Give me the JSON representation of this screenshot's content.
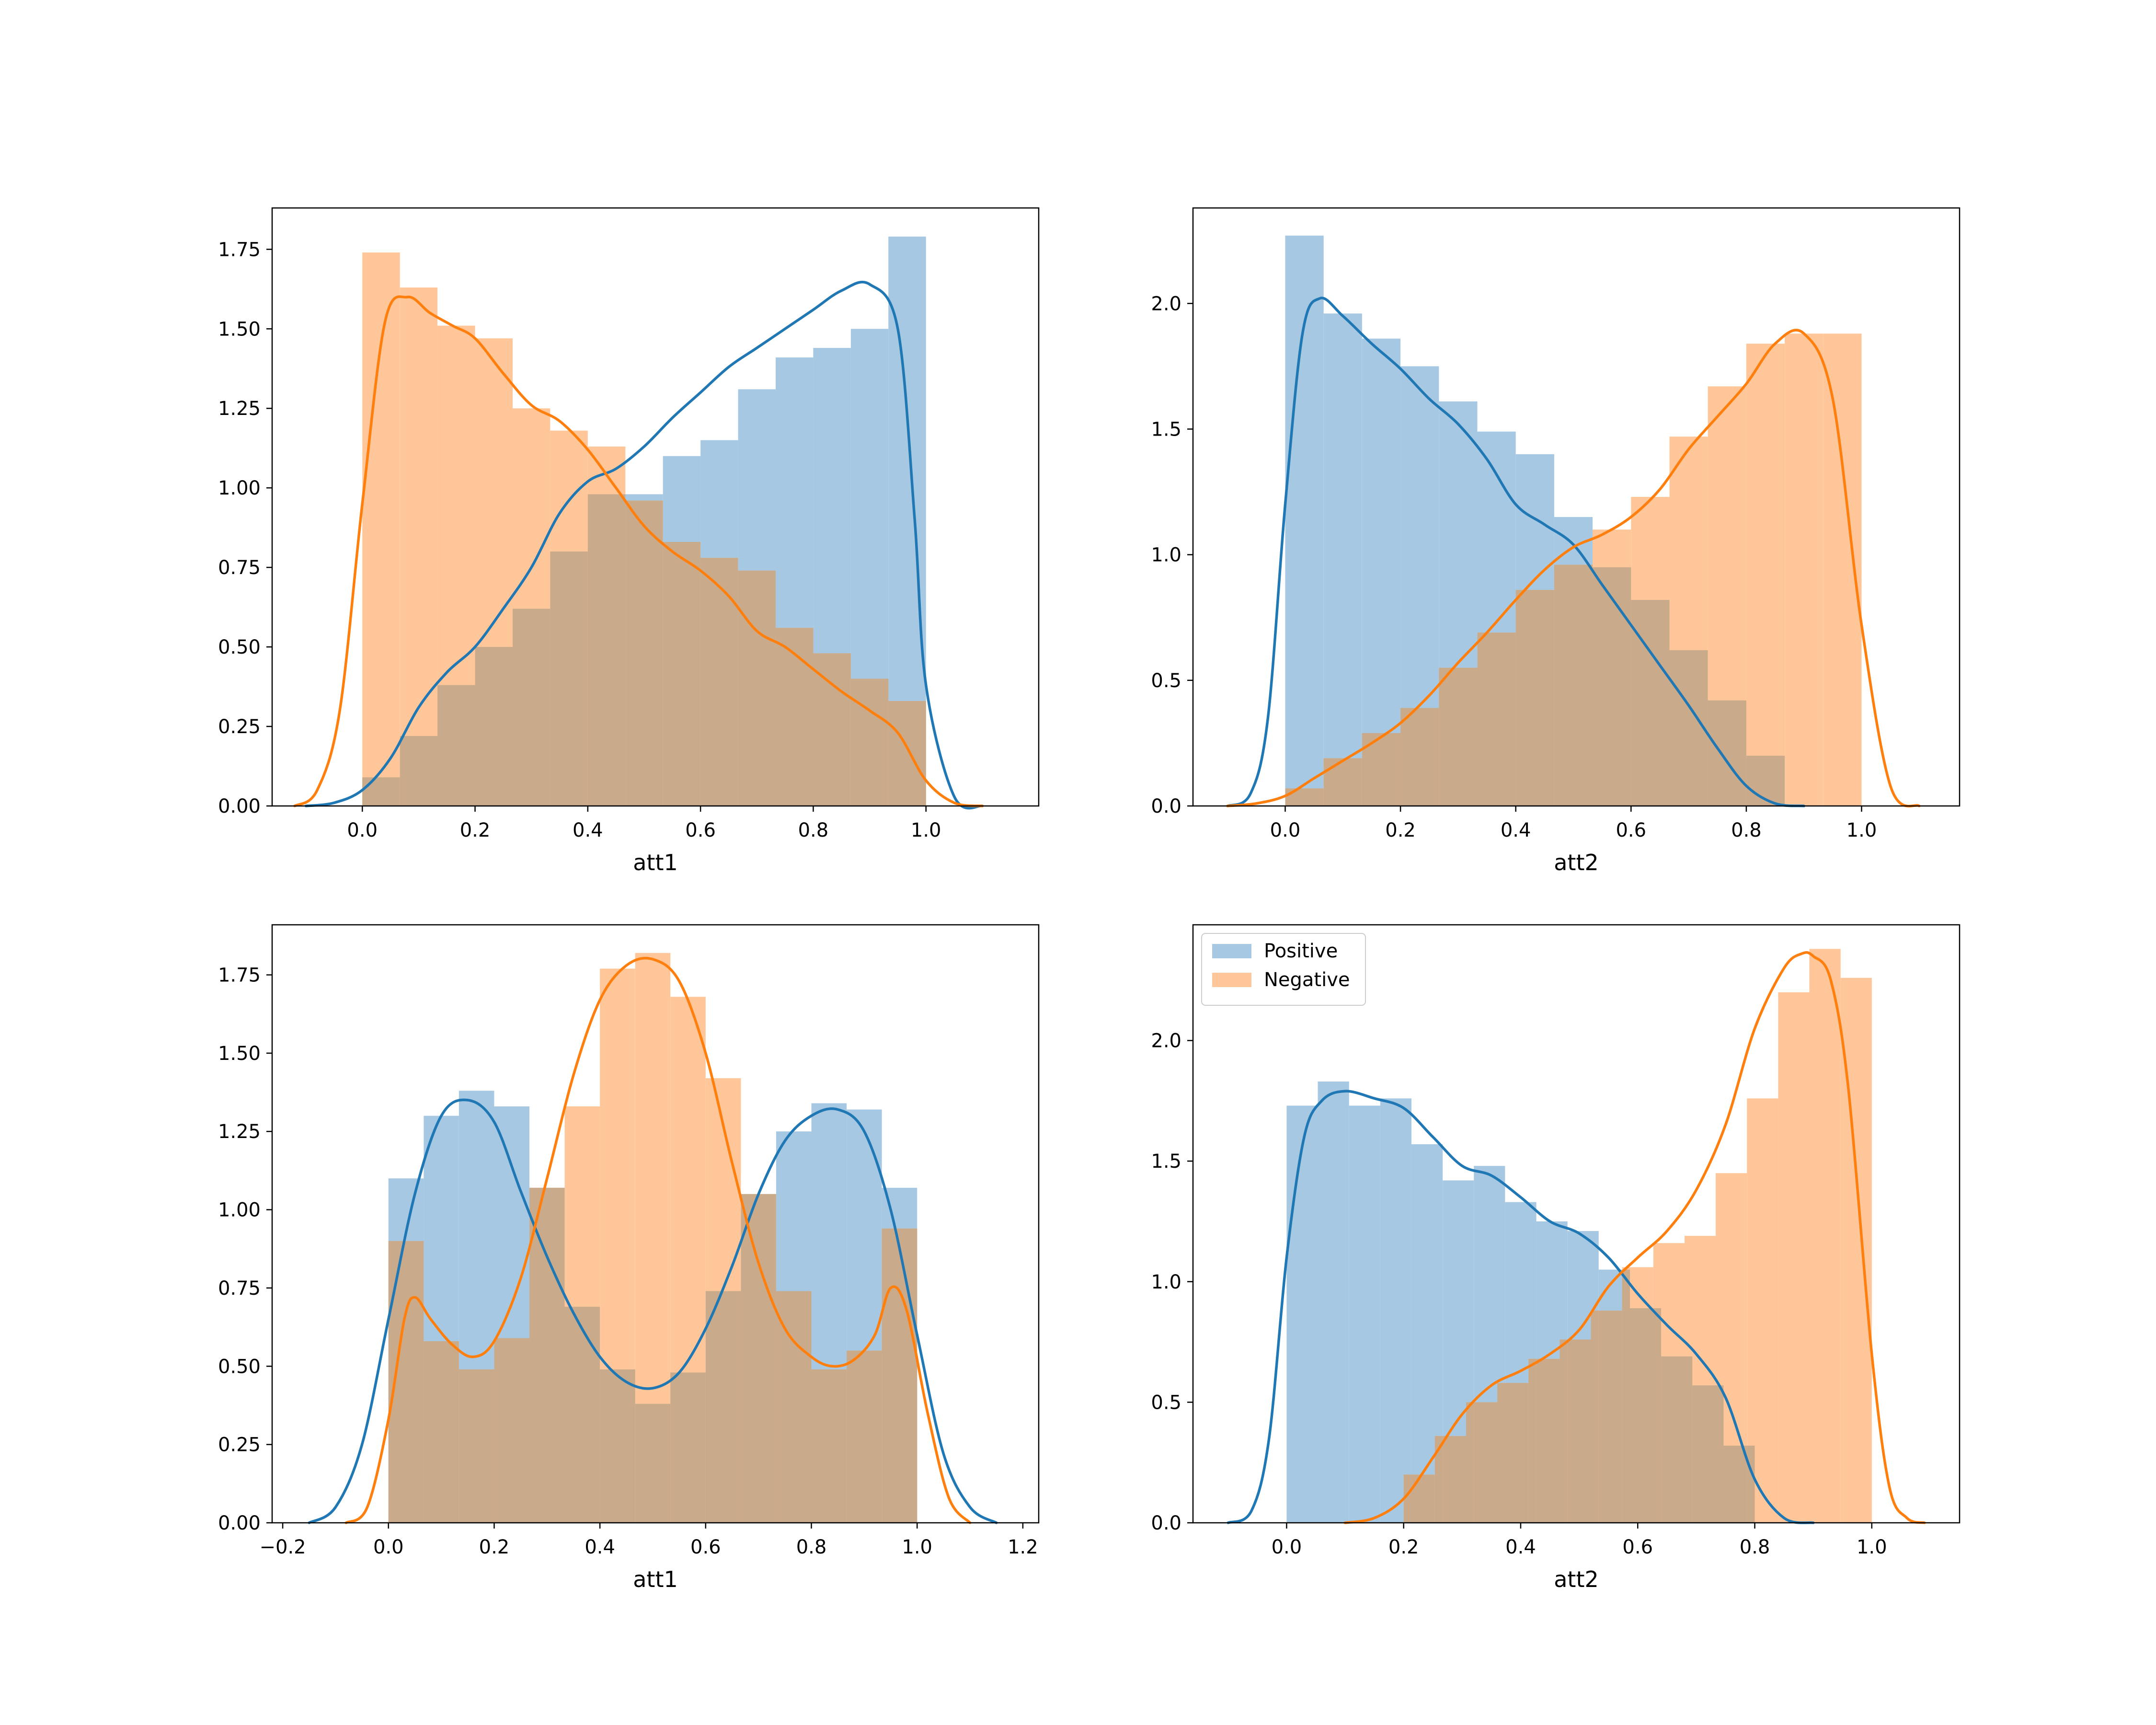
{
  "colors": {
    "positive": "#1f77b4",
    "negative": "#ff7f0e",
    "positive_fill": "#a6c8e2",
    "negative_fill": "#ffc799",
    "overlap_fill": "#c9ab8b"
  },
  "chart_data": [
    {
      "type": "histogram",
      "panel": "top-left",
      "title": "",
      "xlabel": "att1",
      "ylabel": "",
      "xlim": [
        -0.16,
        1.2
      ],
      "ylim": [
        0,
        1.88
      ],
      "xticks": [
        0.0,
        0.2,
        0.4,
        0.6,
        0.8,
        1.0
      ],
      "xtick_labels": [
        "0.0",
        "0.2",
        "0.4",
        "0.6",
        "0.8",
        "1.0"
      ],
      "yticks": [
        0.0,
        0.25,
        0.5,
        0.75,
        1.0,
        1.25,
        1.5,
        1.75
      ],
      "ytick_labels": [
        "0.00",
        "0.25",
        "0.50",
        "0.75",
        "1.00",
        "1.25",
        "1.50",
        "1.75"
      ],
      "grid": false,
      "legend": null,
      "bin_edges": [
        0.0,
        0.0667,
        0.1333,
        0.2,
        0.2667,
        0.3333,
        0.4,
        0.4667,
        0.5333,
        0.6,
        0.6667,
        0.7333,
        0.8,
        0.8667,
        0.9333,
        1.0
      ],
      "series": [
        {
          "key": "positive",
          "hist": [
            0.09,
            0.22,
            0.38,
            0.5,
            0.62,
            0.8,
            0.98,
            0.98,
            1.1,
            1.15,
            1.31,
            1.41,
            1.44,
            1.5,
            1.79
          ],
          "kde_x": [
            -0.1,
            -0.05,
            0.0,
            0.05,
            0.1,
            0.15,
            0.2,
            0.25,
            0.3,
            0.35,
            0.4,
            0.45,
            0.5,
            0.55,
            0.6,
            0.65,
            0.7,
            0.75,
            0.8,
            0.85,
            0.9,
            0.95,
            0.98,
            1.0,
            1.05,
            1.1
          ],
          "kde_y": [
            0.0,
            0.01,
            0.05,
            0.15,
            0.31,
            0.42,
            0.5,
            0.62,
            0.75,
            0.92,
            1.02,
            1.06,
            1.13,
            1.22,
            1.3,
            1.38,
            1.44,
            1.5,
            1.56,
            1.62,
            1.64,
            1.5,
            0.9,
            0.38,
            0.03,
            0.0
          ]
        },
        {
          "key": "negative",
          "hist": [
            1.74,
            1.63,
            1.51,
            1.47,
            1.25,
            1.18,
            1.13,
            0.96,
            0.83,
            0.78,
            0.74,
            0.56,
            0.48,
            0.4,
            0.33
          ],
          "kde_x": [
            -0.12,
            -0.08,
            -0.04,
            0.0,
            0.04,
            0.08,
            0.12,
            0.16,
            0.2,
            0.25,
            0.3,
            0.35,
            0.4,
            0.45,
            0.5,
            0.55,
            0.6,
            0.65,
            0.7,
            0.75,
            0.8,
            0.85,
            0.9,
            0.95,
            1.0,
            1.05,
            1.1
          ],
          "kde_y": [
            0.0,
            0.05,
            0.3,
            0.95,
            1.52,
            1.6,
            1.55,
            1.51,
            1.47,
            1.36,
            1.26,
            1.21,
            1.12,
            1.0,
            0.88,
            0.8,
            0.74,
            0.66,
            0.55,
            0.5,
            0.43,
            0.36,
            0.3,
            0.23,
            0.08,
            0.01,
            0.0
          ]
        }
      ]
    },
    {
      "type": "histogram",
      "panel": "top-right",
      "title": "",
      "xlabel": "att2",
      "ylabel": "",
      "xlim": [
        -0.16,
        1.17
      ],
      "ylim": [
        0,
        2.38
      ],
      "xticks": [
        0.0,
        0.2,
        0.4,
        0.6,
        0.8,
        1.0
      ],
      "xtick_labels": [
        "0.0",
        "0.2",
        "0.4",
        "0.6",
        "0.8",
        "1.0"
      ],
      "yticks": [
        0.0,
        0.5,
        1.0,
        1.5,
        2.0
      ],
      "ytick_labels": [
        "0.0",
        "0.5",
        "1.0",
        "1.5",
        "2.0"
      ],
      "grid": false,
      "legend": null,
      "bin_edges": [
        0.0,
        0.0667,
        0.1333,
        0.2,
        0.2667,
        0.3333,
        0.4,
        0.4667,
        0.5333,
        0.6,
        0.6667,
        0.7333,
        0.8,
        0.8667,
        0.9333,
        1.0
      ],
      "series": [
        {
          "key": "positive",
          "hist": [
            2.27,
            1.96,
            1.86,
            1.75,
            1.61,
            1.49,
            1.4,
            1.15,
            0.95,
            0.82,
            0.62,
            0.42,
            0.2,
            0.0,
            0.0
          ],
          "kde_x": [
            -0.1,
            -0.06,
            -0.03,
            0.0,
            0.03,
            0.06,
            0.1,
            0.15,
            0.2,
            0.25,
            0.3,
            0.35,
            0.4,
            0.45,
            0.5,
            0.55,
            0.6,
            0.65,
            0.7,
            0.75,
            0.8,
            0.85,
            0.9
          ],
          "kde_y": [
            0.0,
            0.05,
            0.35,
            1.2,
            1.88,
            2.02,
            1.95,
            1.84,
            1.74,
            1.62,
            1.52,
            1.38,
            1.2,
            1.12,
            1.04,
            0.88,
            0.72,
            0.56,
            0.4,
            0.23,
            0.08,
            0.01,
            0.0
          ]
        },
        {
          "key": "negative",
          "hist": [
            0.07,
            0.19,
            0.29,
            0.39,
            0.55,
            0.69,
            0.86,
            0.96,
            1.1,
            1.23,
            1.47,
            1.67,
            1.84,
            1.88,
            1.88
          ],
          "kde_x": [
            -0.1,
            -0.05,
            0.0,
            0.05,
            0.1,
            0.15,
            0.2,
            0.25,
            0.3,
            0.35,
            0.4,
            0.45,
            0.5,
            0.55,
            0.6,
            0.65,
            0.7,
            0.75,
            0.8,
            0.85,
            0.9,
            0.95,
            1.0,
            1.05,
            1.1
          ],
          "kde_y": [
            0.0,
            0.01,
            0.04,
            0.11,
            0.18,
            0.25,
            0.33,
            0.44,
            0.57,
            0.69,
            0.82,
            0.94,
            1.03,
            1.08,
            1.15,
            1.26,
            1.42,
            1.55,
            1.68,
            1.84,
            1.88,
            1.62,
            0.72,
            0.08,
            0.0
          ]
        }
      ]
    },
    {
      "type": "histogram",
      "panel": "bottom-left",
      "title": "",
      "xlabel": "att1",
      "ylabel": "",
      "xlim": [
        -0.22,
        1.23
      ],
      "ylim": [
        0,
        1.91
      ],
      "xticks": [
        -0.2,
        0.0,
        0.2,
        0.4,
        0.6,
        0.8,
        1.0,
        1.2
      ],
      "xtick_labels": [
        "−0.2",
        "0.0",
        "0.2",
        "0.4",
        "0.6",
        "0.8",
        "1.0",
        "1.2"
      ],
      "yticks": [
        0.0,
        0.25,
        0.5,
        0.75,
        1.0,
        1.25,
        1.5,
        1.75
      ],
      "ytick_labels": [
        "0.00",
        "0.25",
        "0.50",
        "0.75",
        "1.00",
        "1.25",
        "1.50",
        "1.75"
      ],
      "grid": false,
      "legend": null,
      "bin_edges": [
        0.0,
        0.0667,
        0.1333,
        0.2,
        0.2667,
        0.3333,
        0.4,
        0.4667,
        0.5333,
        0.6,
        0.6667,
        0.7333,
        0.8,
        0.8667,
        0.9333,
        1.0
      ],
      "series": [
        {
          "key": "positive",
          "hist": [
            1.1,
            1.3,
            1.38,
            1.33,
            1.07,
            0.69,
            0.49,
            0.38,
            0.48,
            0.74,
            1.05,
            1.25,
            1.34,
            1.32,
            1.07
          ],
          "kde_x": [
            -0.15,
            -0.1,
            -0.05,
            0.0,
            0.05,
            0.1,
            0.15,
            0.2,
            0.25,
            0.3,
            0.35,
            0.4,
            0.45,
            0.5,
            0.55,
            0.6,
            0.65,
            0.7,
            0.75,
            0.8,
            0.85,
            0.9,
            0.95,
            1.0,
            1.05,
            1.1,
            1.15
          ],
          "kde_y": [
            0.0,
            0.05,
            0.25,
            0.65,
            1.05,
            1.3,
            1.35,
            1.28,
            1.06,
            0.85,
            0.67,
            0.53,
            0.45,
            0.43,
            0.48,
            0.62,
            0.82,
            1.05,
            1.22,
            1.3,
            1.32,
            1.25,
            1.0,
            0.6,
            0.22,
            0.05,
            0.0
          ]
        },
        {
          "key": "negative",
          "hist": [
            0.9,
            0.58,
            0.49,
            0.59,
            1.07,
            1.33,
            1.77,
            1.82,
            1.68,
            1.42,
            1.05,
            0.74,
            0.49,
            0.55,
            0.94
          ],
          "kde_x": [
            -0.08,
            -0.04,
            0.0,
            0.03,
            0.05,
            0.08,
            0.12,
            0.16,
            0.2,
            0.25,
            0.3,
            0.35,
            0.4,
            0.45,
            0.5,
            0.55,
            0.6,
            0.65,
            0.7,
            0.75,
            0.8,
            0.84,
            0.88,
            0.92,
            0.95,
            0.98,
            1.02,
            1.06,
            1.1
          ],
          "kde_y": [
            0.0,
            0.05,
            0.33,
            0.65,
            0.72,
            0.65,
            0.57,
            0.53,
            0.58,
            0.78,
            1.1,
            1.43,
            1.67,
            1.78,
            1.8,
            1.73,
            1.5,
            1.15,
            0.83,
            0.62,
            0.53,
            0.5,
            0.52,
            0.6,
            0.75,
            0.68,
            0.35,
            0.08,
            0.0
          ]
        }
      ]
    },
    {
      "type": "histogram",
      "panel": "bottom-right",
      "title": "",
      "xlabel": "att2",
      "ylabel": "",
      "xlim": [
        -0.16,
        1.15
      ],
      "ylim": [
        0,
        2.48
      ],
      "xticks": [
        0.0,
        0.2,
        0.4,
        0.6,
        0.8,
        1.0
      ],
      "xtick_labels": [
        "0.0",
        "0.2",
        "0.4",
        "0.6",
        "0.8",
        "1.0"
      ],
      "yticks": [
        0.0,
        0.5,
        1.0,
        1.5,
        2.0
      ],
      "ytick_labels": [
        "0.0",
        "0.5",
        "1.0",
        "1.5",
        "2.0"
      ],
      "grid": false,
      "legend": {
        "position": "upper-left",
        "entries": [
          "Positive",
          "Negative"
        ]
      },
      "bin_edges": [
        0.0,
        0.0533,
        0.1067,
        0.16,
        0.2133,
        0.2667,
        0.32,
        0.3733,
        0.4267,
        0.48,
        0.5333,
        0.5867,
        0.64,
        0.6933,
        0.7467,
        0.8
      ],
      "bin_edges_negative": [
        0.2,
        0.2533,
        0.3067,
        0.36,
        0.4133,
        0.4667,
        0.52,
        0.5733,
        0.6267,
        0.68,
        0.7333,
        0.7867,
        0.84,
        0.8933,
        0.9467,
        1.0
      ],
      "series": [
        {
          "key": "positive",
          "hist": [
            1.73,
            1.83,
            1.73,
            1.76,
            1.57,
            1.42,
            1.48,
            1.33,
            1.25,
            1.21,
            1.05,
            0.89,
            0.69,
            0.57,
            0.32
          ],
          "kde_x": [
            -0.1,
            -0.06,
            -0.03,
            0.0,
            0.03,
            0.06,
            0.1,
            0.15,
            0.2,
            0.25,
            0.3,
            0.35,
            0.4,
            0.45,
            0.5,
            0.55,
            0.6,
            0.65,
            0.7,
            0.75,
            0.8,
            0.85,
            0.9
          ],
          "kde_y": [
            0.0,
            0.05,
            0.35,
            1.1,
            1.6,
            1.75,
            1.79,
            1.76,
            1.72,
            1.6,
            1.48,
            1.44,
            1.35,
            1.25,
            1.2,
            1.1,
            0.95,
            0.82,
            0.7,
            0.52,
            0.18,
            0.02,
            0.0
          ]
        },
        {
          "key": "negative",
          "hist": [
            0.2,
            0.36,
            0.5,
            0.58,
            0.68,
            0.76,
            0.88,
            1.06,
            1.16,
            1.19,
            1.45,
            1.76,
            2.2,
            2.38,
            2.26
          ],
          "kde_x": [
            0.1,
            0.15,
            0.2,
            0.25,
            0.3,
            0.35,
            0.4,
            0.45,
            0.5,
            0.55,
            0.6,
            0.65,
            0.7,
            0.75,
            0.8,
            0.85,
            0.88,
            0.9,
            0.93,
            0.96,
            1.0,
            1.03,
            1.06,
            1.09
          ],
          "kde_y": [
            0.0,
            0.02,
            0.1,
            0.27,
            0.45,
            0.57,
            0.63,
            0.7,
            0.8,
            0.98,
            1.1,
            1.21,
            1.38,
            1.65,
            2.05,
            2.3,
            2.36,
            2.35,
            2.25,
            1.8,
            0.7,
            0.15,
            0.02,
            0.0
          ]
        }
      ]
    }
  ]
}
